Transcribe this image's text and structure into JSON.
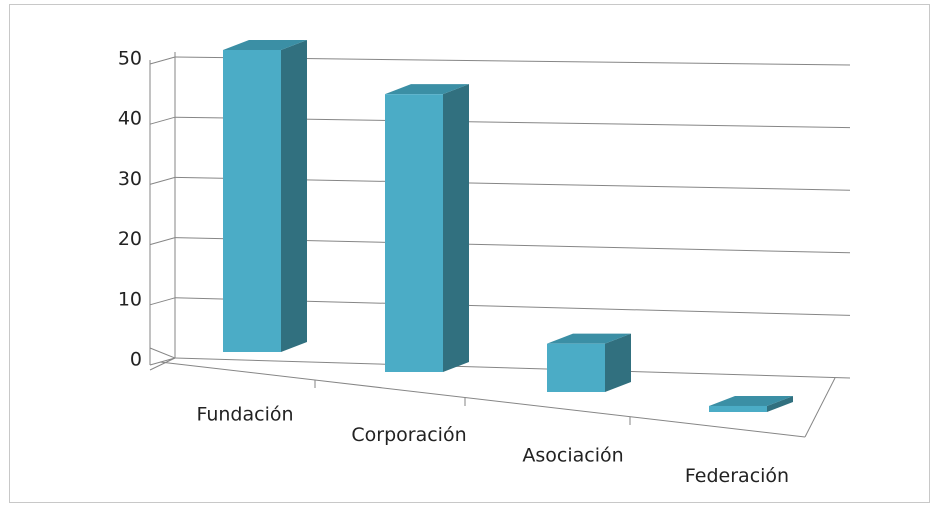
{
  "chart_data": {
    "type": "bar3d",
    "categories": [
      "Fundación",
      "Corporación",
      "Asociación",
      "Federación"
    ],
    "values": [
      50,
      46,
      8,
      1
    ],
    "color": "#4bacc6",
    "ylim": [
      0,
      50
    ],
    "yticks": [
      0,
      10,
      20,
      30,
      40,
      50
    ],
    "grid": true
  }
}
